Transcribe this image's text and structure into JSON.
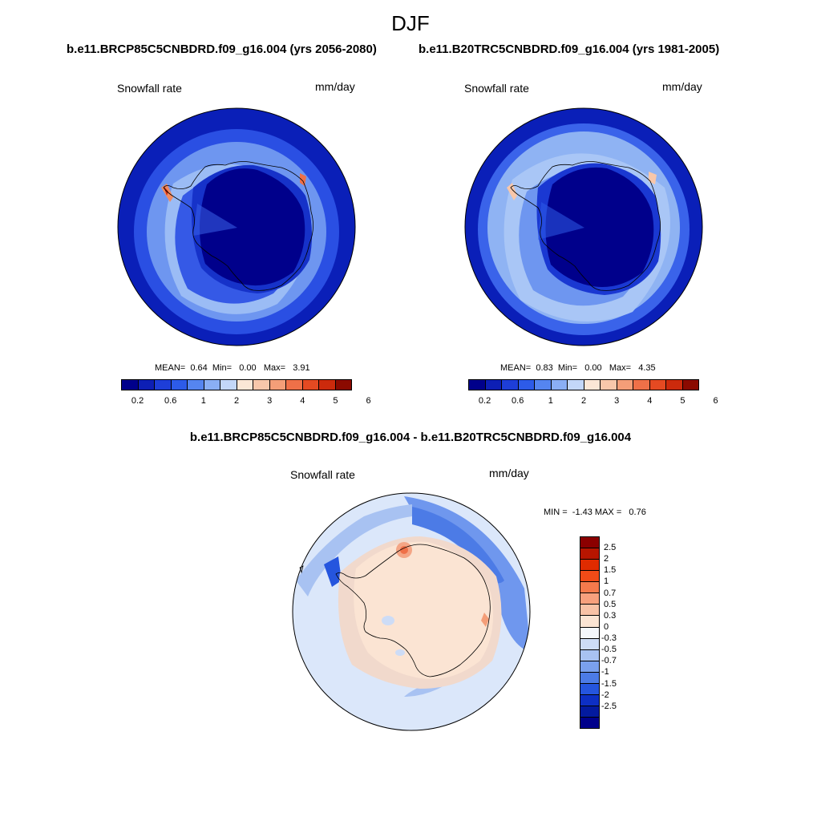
{
  "page": {
    "title": "DJF",
    "left_run": "b.e11.BRCP85C5CNBDRD.f09_g16.004 (yrs 2056-2080)",
    "right_run": "b.e11.B20TRC5CNBDRD.f09_g16.004 (yrs 1981-2005)",
    "diff_title": "b.e11.BRCP85C5CNBDRD.f09_g16.004 - b.e11.B20TRC5CNBDRD.f09_g16.004"
  },
  "panels": {
    "left": {
      "variable": "Snowfall rate",
      "units": "mm/day",
      "stats": {
        "mean_label": "MEAN=",
        "mean": "0.64",
        "min_label": "Min=",
        "min": "0.00",
        "max_label": "Max=",
        "max": "3.91"
      }
    },
    "right": {
      "variable": "Snowfall rate",
      "units": "mm/day",
      "stats": {
        "mean_label": "MEAN=",
        "mean": "0.83",
        "min_label": "Min=",
        "min": "0.00",
        "max_label": "Max=",
        "max": "4.35"
      }
    },
    "diff": {
      "variable": "Snowfall rate",
      "units": "mm/day",
      "stats": {
        "min_label": "MIN =",
        "min": "-1.43",
        "max_label": "MAX =",
        "max": "0.76"
      }
    }
  },
  "colorbars": {
    "abs": {
      "colors": [
        "#00008b",
        "#0d1fb5",
        "#1e3ed8",
        "#2d5be8",
        "#5585f0",
        "#8aaff5",
        "#c3d7f8",
        "#fbe7d6",
        "#f8c7aa",
        "#f49e78",
        "#ef7048",
        "#e54a22",
        "#cc2a0c",
        "#8b0a00"
      ],
      "tick_labels": [
        "0.2",
        "0.6",
        "1",
        "2",
        "3",
        "4",
        "5",
        "6"
      ]
    },
    "diff": {
      "colors": [
        "#8b0000",
        "#b71500",
        "#e02b00",
        "#f24b17",
        "#f57a4c",
        "#f7a07d",
        "#f8c2a6",
        "#fbe4d3",
        "#f4f7fc",
        "#cddcf6",
        "#a8c2f2",
        "#7aa0ee",
        "#4c7be6",
        "#2555de",
        "#0d2fc4",
        "#031a9f",
        "#00008b"
      ],
      "tick_labels": [
        "2.5",
        "2",
        "1.5",
        "1",
        "0.7",
        "0.5",
        "0.3",
        "0",
        "-0.3",
        "-0.5",
        "-0.7",
        "-1",
        "-1.5",
        "-2",
        "-2.5"
      ]
    }
  },
  "colors": {
    "ocean_dark": "#0a1fb8",
    "ocean_mid": "#3a63ea",
    "ocean_light": "#8fb3f3",
    "ice_core": "#00008b",
    "diff_land": "#fbe4d3",
    "diff_ocean_pale": "#dbe7fa",
    "diff_ocean_blue": "#6f97ee"
  },
  "icons": [
    "polar-map-icon",
    "antarctica-coastline-icon"
  ]
}
